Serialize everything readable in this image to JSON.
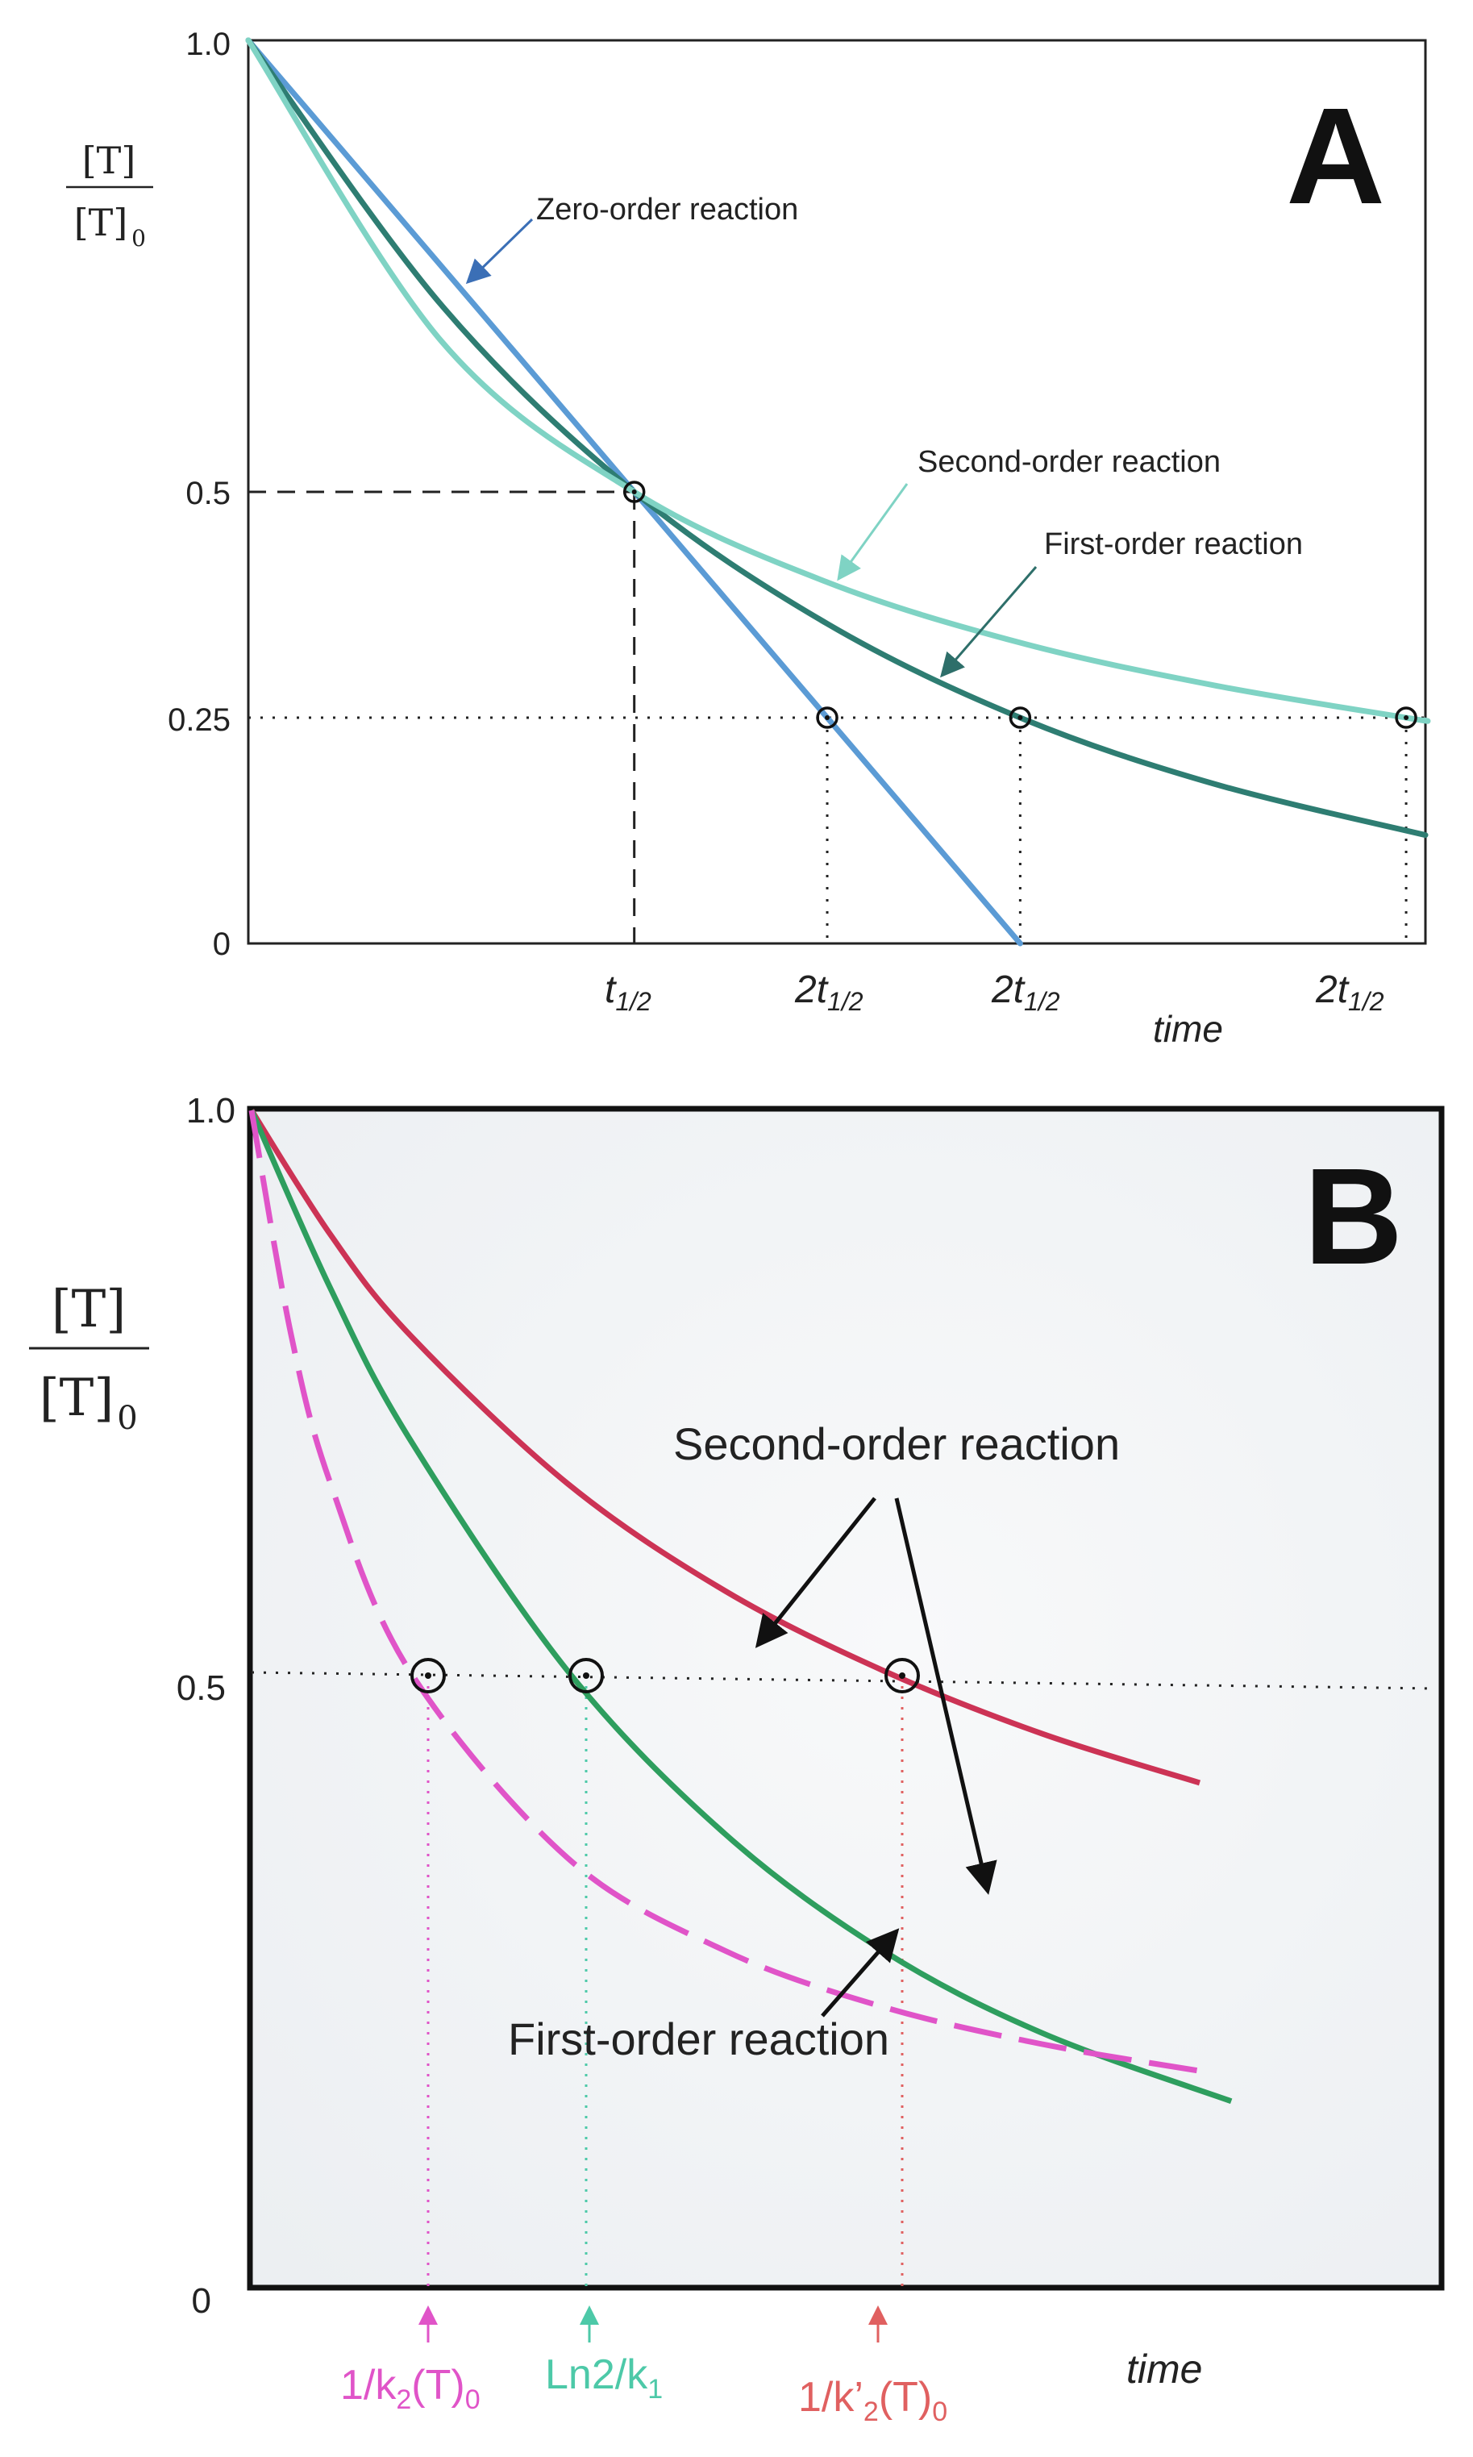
{
  "chart_data": [
    {
      "type": "line",
      "panel_label": "A",
      "ylabel_num": "[T]",
      "ylabel_den": "[T]",
      "ylabel_den_sub": "0",
      "xlabel": "time",
      "yticks": [
        "1.0",
        "0.5",
        "0.25",
        "0"
      ],
      "ytick_values": [
        1.0,
        0.5,
        0.25,
        0
      ],
      "xtick_labels": [
        {
          "main": "t",
          "sub": "1/2",
          "x": 1.0
        },
        {
          "main": "2t",
          "sub": "1/2",
          "x": 1.5
        },
        {
          "main": "2t",
          "sub": "1/2",
          "x": 2.0
        },
        {
          "main": "2t",
          "sub": "1/2",
          "x": 3.0
        }
      ],
      "xlim": [
        0,
        3.05
      ],
      "ylim": [
        0,
        1.0
      ],
      "series": [
        {
          "name": "Zero-order reaction",
          "color": "#5b9bd5",
          "x": [
            0,
            1.0,
            2.0
          ],
          "y": [
            1.0,
            0.5,
            0.0
          ]
        },
        {
          "name": "First-order reaction",
          "color": "#2e7d72",
          "x": [
            0,
            0.5,
            1.0,
            1.5,
            2.0,
            2.5,
            3.05
          ],
          "y": [
            1.0,
            0.707,
            0.5,
            0.354,
            0.25,
            0.177,
            0.12
          ]
        },
        {
          "name": "Second-order reaction",
          "color": "#7fd3c4",
          "x": [
            0,
            0.5,
            1.0,
            1.5,
            2.0,
            2.5,
            3.0,
            3.05
          ],
          "y": [
            1.0,
            0.667,
            0.5,
            0.4,
            0.333,
            0.286,
            0.25,
            0.247
          ]
        }
      ],
      "reference_lines": [
        {
          "y": 0.5,
          "style": "dashed",
          "x_to": 1.0
        },
        {
          "y": 0.25,
          "style": "dotted"
        }
      ],
      "marked_points": [
        [
          1.0,
          0.5
        ],
        [
          1.5,
          0.25
        ],
        [
          2.0,
          0.25
        ],
        [
          3.0,
          0.25
        ]
      ],
      "annotations": [
        "Zero-order reaction",
        "Second-order reaction",
        "First-order reaction"
      ]
    },
    {
      "type": "line",
      "panel_label": "B",
      "ylabel_num": "[T]",
      "ylabel_den": "[T]",
      "ylabel_den_sub": "0",
      "xlabel": "time",
      "yticks": [
        "1.0",
        "0.5",
        "0"
      ],
      "ytick_values": [
        1.0,
        0.5,
        0
      ],
      "xtick_labels": [
        {
          "main": "1/k",
          "sub": "2",
          "rest": "(T)",
          "sub2": "0",
          "color": "#e054c8",
          "x": 1.0
        },
        {
          "main": "Ln2/k",
          "sub": "1",
          "rest": "",
          "sub2": "",
          "color": "#4dc9a8",
          "x": 2.0
        },
        {
          "main": "1/k’",
          "sub": "2",
          "rest": "(T)",
          "sub2": "0",
          "color": "#e06060",
          "x": 4.0
        }
      ],
      "xlim": [
        0,
        8.0
      ],
      "ylim": [
        0,
        1.0
      ],
      "series": [
        {
          "name": "Second-order reaction",
          "color": "#cc3355",
          "x": [
            0,
            0.5,
            1,
            2,
            3,
            4,
            5,
            6
          ],
          "y": [
            1.0,
            0.889,
            0.8,
            0.667,
            0.571,
            0.5,
            0.444,
            0.4
          ]
        },
        {
          "name": "First-order reaction",
          "color": "#2e9e5e",
          "x": [
            0,
            0.5,
            1,
            2,
            3,
            4,
            5,
            6.2
          ],
          "y": [
            1.0,
            0.841,
            0.707,
            0.5,
            0.354,
            0.25,
            0.177,
            0.116
          ]
        },
        {
          "name": "Second-order reaction",
          "color": "#e054c8",
          "style": "dashed",
          "x": [
            0,
            0.25,
            0.5,
            1,
            2,
            3,
            4,
            5,
            6
          ],
          "y": [
            1.0,
            0.8,
            0.667,
            0.5,
            0.333,
            0.25,
            0.2,
            0.167,
            0.143
          ]
        }
      ],
      "reference_lines": [
        {
          "y": 0.5,
          "style": "dotted"
        }
      ],
      "marked_points": [
        [
          1.0,
          0.5
        ],
        [
          2.0,
          0.5
        ],
        [
          4.0,
          0.5
        ]
      ],
      "annotations": [
        "Second-order reaction",
        "First-order reaction"
      ]
    }
  ]
}
